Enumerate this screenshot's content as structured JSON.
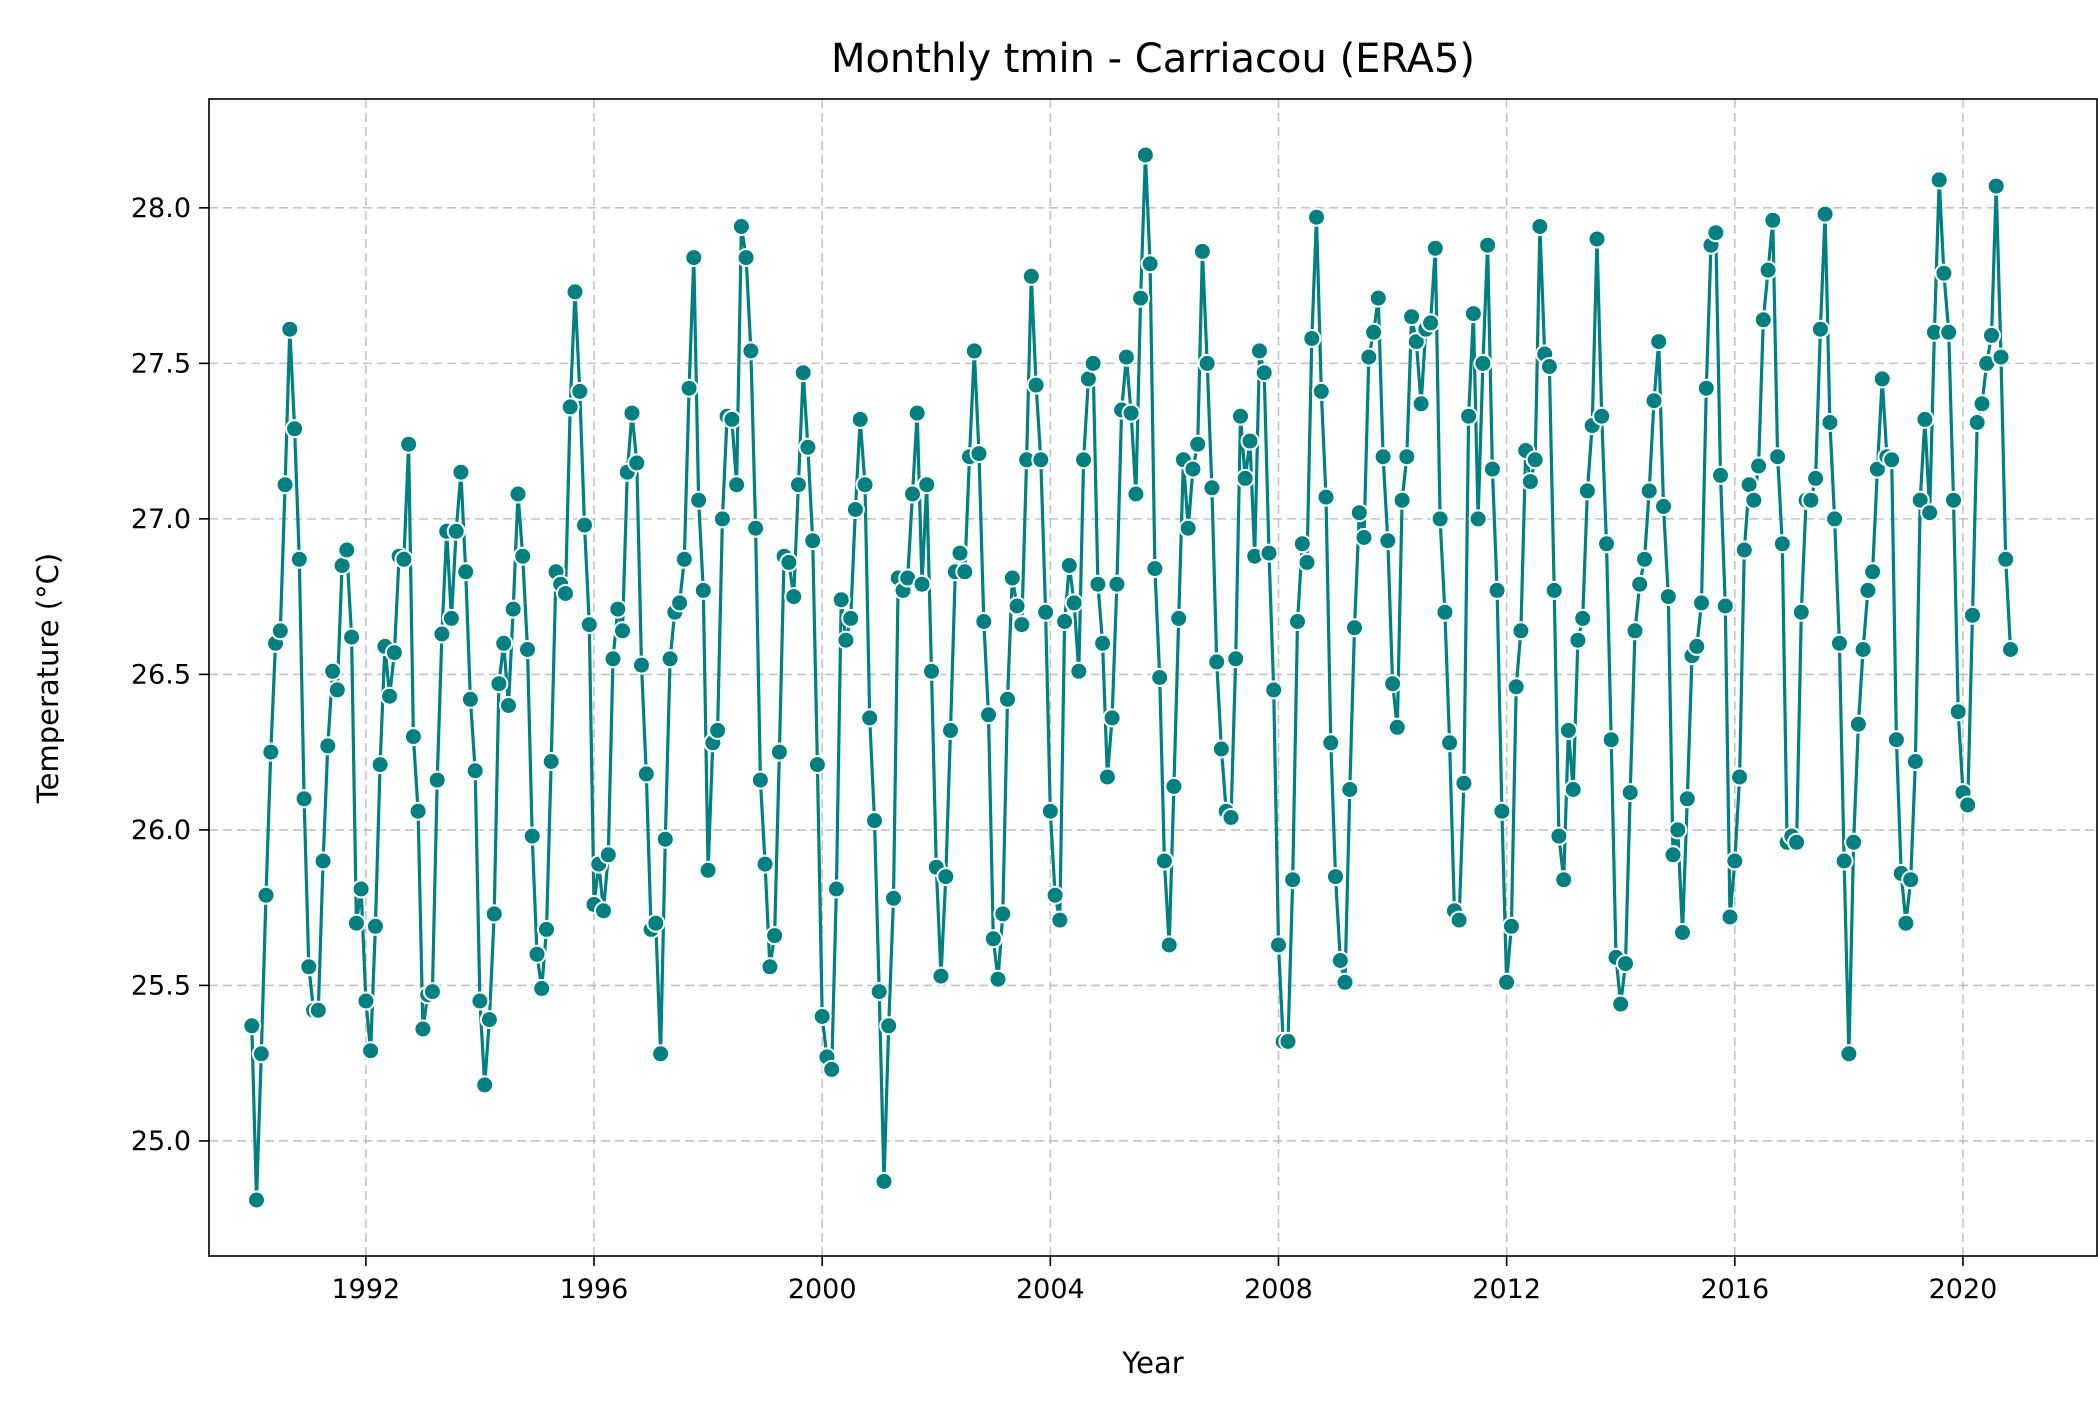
{
  "chart_data": {
    "type": "line",
    "title": "Monthly tmin - Carriacou (ERA5)",
    "xlabel": "Year",
    "ylabel": "Temperature (°C)",
    "xlim": [
      1989.25,
      2022.35
    ],
    "ylim": [
      24.63,
      28.35
    ],
    "xticks": [
      1992,
      1996,
      2000,
      2004,
      2008,
      2012,
      2016,
      2020
    ],
    "xtick_labels": [
      "1992",
      "1996",
      "2000",
      "2004",
      "2008",
      "2012",
      "2016",
      "2020"
    ],
    "yticks": [
      25.0,
      25.5,
      26.0,
      26.5,
      27.0,
      27.5,
      28.0
    ],
    "ytick_labels": [
      "25.0",
      "25.5",
      "26.0",
      "26.5",
      "27.0",
      "27.5",
      "28.0"
    ],
    "grid": true,
    "legend": "none",
    "x_start": "1990-01",
    "x_step": "1 month",
    "colors": {
      "line": "#008080",
      "marker": "#008080",
      "marker_edge": "#ffffff"
    },
    "series": [
      {
        "values": [
          25.37,
          24.81,
          25.28,
          25.79,
          26.25,
          26.6,
          26.64,
          27.11,
          27.61,
          27.29,
          26.87,
          26.1,
          25.56,
          25.42,
          25.42,
          25.9,
          26.27,
          26.51,
          26.45,
          26.85,
          26.9,
          26.62,
          25.7,
          25.81,
          25.45,
          25.29,
          25.69,
          26.21,
          26.59,
          26.43,
          26.57,
          26.88,
          26.87,
          27.24,
          26.3,
          26.06,
          25.36,
          25.47,
          25.48,
          26.16,
          26.63,
          26.96,
          26.68,
          26.96,
          27.15,
          26.83,
          26.42,
          26.19,
          25.45,
          25.18,
          25.39,
          25.73,
          26.47,
          26.6,
          26.4,
          26.71,
          27.08,
          26.88,
          26.58,
          25.98,
          25.6,
          25.49,
          25.68,
          26.22,
          26.83,
          26.79,
          26.76,
          27.36,
          27.73,
          27.41,
          26.98,
          26.66,
          25.76,
          25.89,
          25.74,
          25.92,
          26.55,
          26.71,
          26.64,
          27.15,
          27.34,
          27.18,
          26.53,
          26.18,
          25.68,
          25.7,
          25.28,
          25.97,
          26.55,
          26.7,
          26.73,
          26.87,
          27.42,
          27.84,
          27.06,
          26.77,
          25.87,
          26.28,
          26.32,
          27.0,
          27.33,
          27.32,
          27.11,
          27.94,
          27.84,
          27.54,
          26.97,
          26.16,
          25.89,
          25.56,
          25.66,
          26.25,
          26.88,
          26.86,
          26.75,
          27.11,
          27.47,
          27.23,
          26.93,
          26.21,
          25.4,
          25.27,
          25.23,
          25.81,
          26.74,
          26.61,
          26.68,
          27.03,
          27.32,
          27.11,
          26.36,
          26.03,
          25.48,
          24.87,
          25.37,
          25.78,
          26.81,
          26.77,
          26.81,
          27.08,
          27.34,
          26.79,
          27.11,
          26.51,
          25.88,
          25.53,
          25.85,
          26.32,
          26.83,
          26.89,
          26.83,
          27.2,
          27.54,
          27.21,
          26.67,
          26.37,
          25.65,
          25.52,
          25.73,
          26.42,
          26.81,
          26.72,
          26.66,
          27.19,
          27.78,
          27.43,
          27.19,
          26.7,
          26.06,
          25.79,
          25.71,
          26.67,
          26.85,
          26.73,
          26.51,
          27.19,
          27.45,
          27.5,
          26.79,
          26.6,
          26.17,
          26.36,
          26.79,
          27.35,
          27.52,
          27.34,
          27.08,
          27.71,
          28.17,
          27.82,
          26.84,
          26.49,
          25.9,
          25.63,
          26.14,
          26.68,
          27.19,
          26.97,
          27.16,
          27.24,
          27.86,
          27.5,
          27.1,
          26.54,
          26.26,
          26.06,
          26.04,
          26.55,
          27.33,
          27.13,
          27.25,
          26.88,
          27.54,
          27.47,
          26.89,
          26.45,
          25.63,
          25.32,
          25.32,
          25.84,
          26.67,
          26.92,
          26.86,
          27.58,
          27.97,
          27.41,
          27.07,
          26.28,
          25.85,
          25.58,
          25.51,
          26.13,
          26.65,
          27.02,
          26.94,
          27.52,
          27.6,
          27.71,
          27.2,
          26.93,
          26.47,
          26.33,
          27.06,
          27.2,
          27.65,
          27.57,
          27.37,
          27.61,
          27.63,
          27.87,
          27.0,
          26.7,
          26.28,
          25.74,
          25.71,
          26.15,
          27.33,
          27.66,
          27.0,
          27.5,
          27.88,
          27.16,
          26.77,
          26.06,
          25.51,
          25.69,
          26.46,
          26.64,
          27.22,
          27.12,
          27.19,
          27.94,
          27.53,
          27.49,
          26.77,
          25.98,
          25.84,
          26.32,
          26.13,
          26.61,
          26.68,
          27.09,
          27.3,
          27.9,
          27.33,
          26.92,
          26.29,
          25.59,
          25.44,
          25.57,
          26.12,
          26.64,
          26.79,
          26.87,
          27.09,
          27.38,
          27.57,
          27.04,
          26.75,
          25.92,
          26.0,
          25.67,
          26.1,
          26.56,
          26.59,
          26.73,
          27.42,
          27.88,
          27.92,
          27.14,
          26.72,
          25.72,
          25.9,
          26.17,
          26.9,
          27.11,
          27.06,
          27.17,
          27.64,
          27.8,
          27.96,
          27.2,
          26.92,
          25.96,
          25.98,
          25.96,
          26.7,
          27.06,
          27.06,
          27.13,
          27.61,
          27.98,
          27.31,
          27.0,
          26.6,
          25.9,
          25.28,
          25.96,
          26.34,
          26.58,
          26.77,
          26.83,
          27.16,
          27.45,
          27.2,
          27.19,
          26.29,
          25.86,
          25.7,
          25.84,
          26.22,
          27.06,
          27.32,
          27.02,
          27.6,
          28.09,
          27.79,
          27.6,
          27.06,
          26.38,
          26.12,
          26.08,
          26.69,
          27.31,
          27.37,
          27.5,
          27.59,
          28.07,
          27.52,
          26.87,
          26.58
        ]
      }
    ]
  }
}
